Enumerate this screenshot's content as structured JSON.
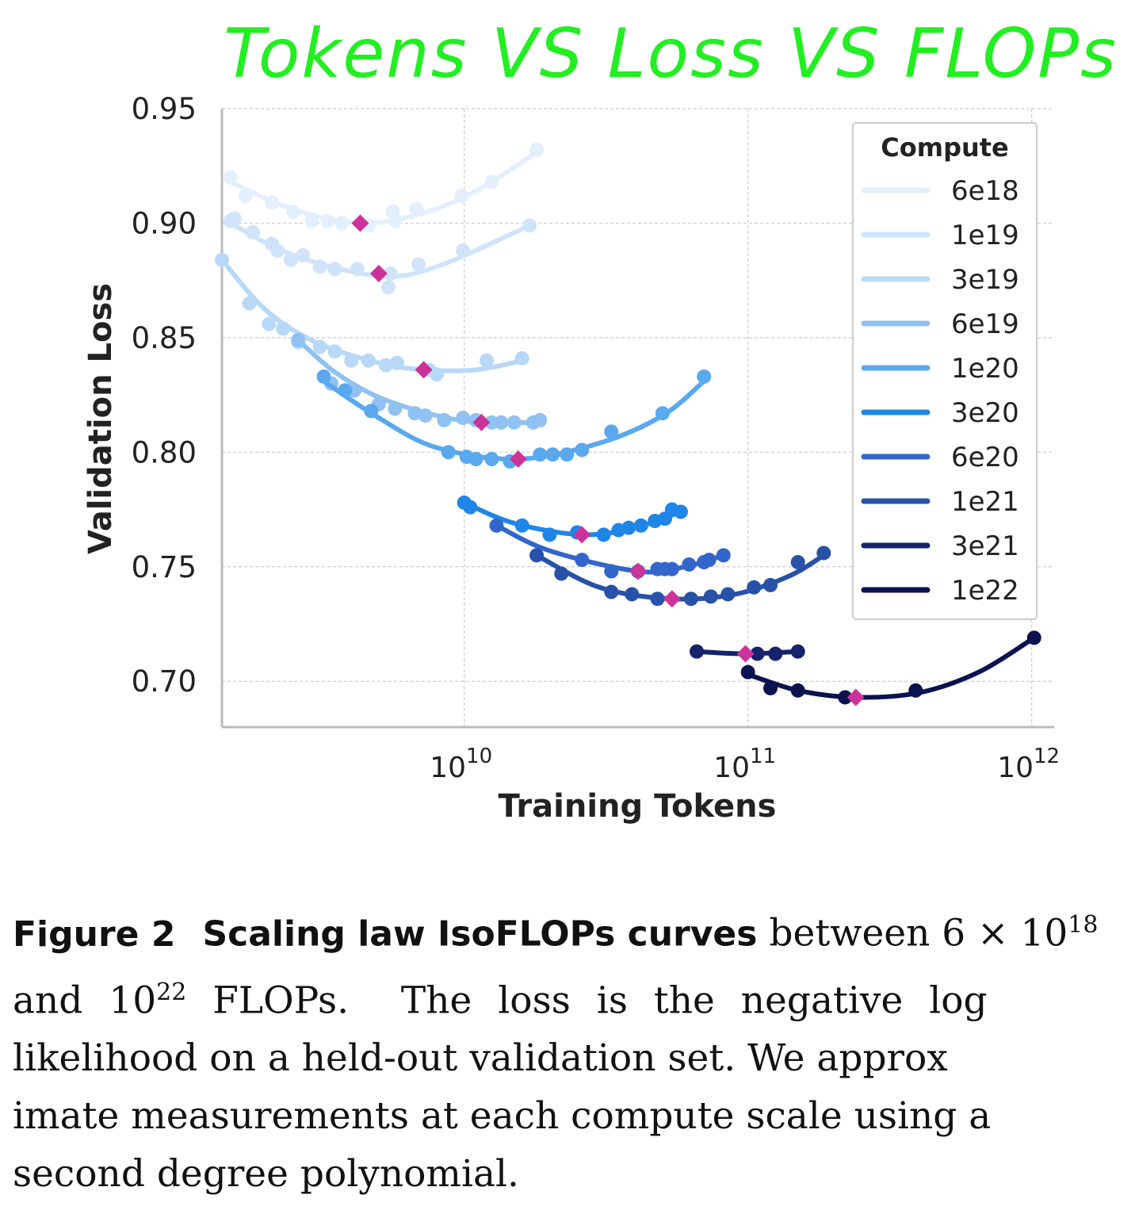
{
  "annotation": "Tokens VS Loss VS FLOPs",
  "chart_data": {
    "type": "scatter",
    "xlabel": "Training Tokens",
    "ylabel": "Validation Loss",
    "xscale": "log",
    "xlim": [
      1400000000.0,
      1200000000000.0
    ],
    "ylim": [
      0.68,
      0.95
    ],
    "yticks": [
      "0.70",
      "0.75",
      "0.80",
      "0.85",
      "0.90",
      "0.95"
    ],
    "xticks": [
      {
        "base": "10",
        "exp": "10",
        "value": 10000000000.0
      },
      {
        "base": "10",
        "exp": "11",
        "value": 100000000000.0
      },
      {
        "base": "10",
        "exp": "12",
        "value": 1000000000000.0
      }
    ],
    "grid": true,
    "legend": {
      "title": "Compute",
      "placement": "top-right"
    },
    "optimum_color": "#cc3399",
    "series": [
      {
        "name": "6e18",
        "color": "#e3effc",
        "points": [
          [
            1500000000.0,
            0.92
          ],
          [
            1700000000.0,
            0.912
          ],
          [
            2100000000.0,
            0.909
          ],
          [
            2500000000.0,
            0.905
          ],
          [
            2900000000.0,
            0.901
          ],
          [
            3300000000.0,
            0.901
          ],
          [
            3700000000.0,
            0.9
          ],
          [
            4600000000.0,
            0.899
          ],
          [
            5600000000.0,
            0.905
          ],
          [
            5700000000.0,
            0.901
          ],
          [
            6800000000.0,
            0.906
          ],
          [
            9800000000.0,
            0.912
          ],
          [
            12500000000.0,
            0.918
          ],
          [
            18000000000.0,
            0.932
          ]
        ],
        "fit": [
          [
            1500000000.0,
            0.918
          ],
          [
            2500000000.0,
            0.906
          ],
          [
            4300000000.0,
            0.9
          ],
          [
            7000000000.0,
            0.904
          ],
          [
            11000000000.0,
            0.914
          ],
          [
            18000000000.0,
            0.931
          ]
        ],
        "optimum": [
          4300000000.0,
          0.9
        ]
      },
      {
        "name": "1e19",
        "color": "#cfe4fb",
        "points": [
          [
            1500000000.0,
            0.901
          ],
          [
            1550000000.0,
            0.902
          ],
          [
            1800000000.0,
            0.896
          ],
          [
            2100000000.0,
            0.891
          ],
          [
            2200000000.0,
            0.888
          ],
          [
            2450000000.0,
            0.884
          ],
          [
            2700000000.0,
            0.886
          ],
          [
            3100000000.0,
            0.881
          ],
          [
            3500000000.0,
            0.88
          ],
          [
            4200000000.0,
            0.88
          ],
          [
            5400000000.0,
            0.872
          ],
          [
            5500000000.0,
            0.878
          ],
          [
            6900000000.0,
            0.882
          ],
          [
            9900000000.0,
            0.888
          ],
          [
            17000000000.0,
            0.899
          ]
        ],
        "fit": [
          [
            1500000000.0,
            0.9
          ],
          [
            2500000000.0,
            0.886
          ],
          [
            5000000000.0,
            0.877
          ],
          [
            8000000000.0,
            0.881
          ],
          [
            17000000000.0,
            0.899
          ]
        ],
        "optimum": [
          5000000000.0,
          0.878
        ]
      },
      {
        "name": "3e19",
        "color": "#b8d8f8",
        "points": [
          [
            1400000000.0,
            0.884
          ],
          [
            1750000000.0,
            0.865
          ],
          [
            2050000000.0,
            0.856
          ],
          [
            2300000000.0,
            0.854
          ],
          [
            2600000000.0,
            0.848
          ],
          [
            3100000000.0,
            0.846
          ],
          [
            3500000000.0,
            0.844
          ],
          [
            4000000000.0,
            0.84
          ],
          [
            4600000000.0,
            0.84
          ],
          [
            5300000000.0,
            0.838
          ],
          [
            5800000000.0,
            0.839
          ],
          [
            7500000000.0,
            0.836
          ],
          [
            8000000000.0,
            0.834
          ],
          [
            12000000000.0,
            0.84
          ],
          [
            16000000000.0,
            0.841
          ]
        ],
        "fit": [
          [
            1400000000.0,
            0.884
          ],
          [
            2000000000.0,
            0.862
          ],
          [
            3000000000.0,
            0.848
          ],
          [
            5000000000.0,
            0.839
          ],
          [
            7200000000.0,
            0.836
          ],
          [
            11000000000.0,
            0.836
          ],
          [
            16000000000.0,
            0.84
          ]
        ],
        "optimum": [
          7200000000.0,
          0.836
        ]
      },
      {
        "name": "6e19",
        "color": "#90c1f2",
        "points": [
          [
            2600000000.0,
            0.849
          ],
          [
            3400000000.0,
            0.83
          ],
          [
            4100000000.0,
            0.827
          ],
          [
            5000000000.0,
            0.821
          ],
          [
            5700000000.0,
            0.819
          ],
          [
            6700000000.0,
            0.817
          ],
          [
            7300000000.0,
            0.816
          ],
          [
            8500000000.0,
            0.814
          ],
          [
            9900000000.0,
            0.815
          ],
          [
            11000000000.0,
            0.814
          ],
          [
            12500000000.0,
            0.813
          ],
          [
            13500000000.0,
            0.813
          ],
          [
            15000000000.0,
            0.813
          ],
          [
            17500000000.0,
            0.813
          ],
          [
            18500000000.0,
            0.814
          ]
        ],
        "fit": [
          [
            2600000000.0,
            0.849
          ],
          [
            3500000000.0,
            0.835
          ],
          [
            5000000000.0,
            0.824
          ],
          [
            8000000000.0,
            0.816
          ],
          [
            11500000000.0,
            0.813
          ],
          [
            18500000000.0,
            0.813
          ]
        ],
        "optimum": [
          11500000000.0,
          0.813
        ]
      },
      {
        "name": "1e20",
        "color": "#5aa8ee",
        "points": [
          [
            3200000000.0,
            0.833
          ],
          [
            3800000000.0,
            0.827
          ],
          [
            4700000000.0,
            0.818
          ],
          [
            8800000000.0,
            0.8
          ],
          [
            10200000000.0,
            0.798
          ],
          [
            11000000000.0,
            0.797
          ],
          [
            12500000000.0,
            0.797
          ],
          [
            14500000000.0,
            0.796
          ],
          [
            18500000000.0,
            0.799
          ],
          [
            20500000000.0,
            0.799
          ],
          [
            23000000000.0,
            0.799
          ],
          [
            26000000000.0,
            0.801
          ],
          [
            33000000000.0,
            0.809
          ],
          [
            50000000000.0,
            0.817
          ],
          [
            70000000000.0,
            0.833
          ]
        ],
        "fit": [
          [
            3200000000.0,
            0.831
          ],
          [
            5000000000.0,
            0.815
          ],
          [
            8000000000.0,
            0.802
          ],
          [
            15500000000.0,
            0.797
          ],
          [
            30000000000.0,
            0.804
          ],
          [
            50000000000.0,
            0.816
          ],
          [
            70000000000.0,
            0.831
          ]
        ],
        "optimum": [
          15500000000.0,
          0.797
        ]
      },
      {
        "name": "3e20",
        "color": "#1f86e8",
        "points": [
          [
            10000000000.0,
            0.778
          ],
          [
            10500000000.0,
            0.776
          ],
          [
            16000000000.0,
            0.768
          ],
          [
            20000000000.0,
            0.764
          ],
          [
            25000000000.0,
            0.765
          ],
          [
            31000000000.0,
            0.764
          ],
          [
            35000000000.0,
            0.766
          ],
          [
            38000000000.0,
            0.767
          ],
          [
            42000000000.0,
            0.768
          ],
          [
            47000000000.0,
            0.77
          ],
          [
            51000000000.0,
            0.771
          ],
          [
            54000000000.0,
            0.775
          ],
          [
            58000000000.0,
            0.774
          ]
        ],
        "fit": [
          [
            10000000000.0,
            0.778
          ],
          [
            15000000000.0,
            0.769
          ],
          [
            26000000000.0,
            0.764
          ],
          [
            40000000000.0,
            0.767
          ],
          [
            58000000000.0,
            0.774
          ]
        ],
        "optimum": [
          26000000000.0,
          0.764
        ]
      },
      {
        "name": "6e20",
        "color": "#3366cc",
        "points": [
          [
            13000000000.0,
            0.768
          ],
          [
            26000000000.0,
            0.753
          ],
          [
            33000000000.0,
            0.748
          ],
          [
            41000000000.0,
            0.748
          ],
          [
            48000000000.0,
            0.749
          ],
          [
            51000000000.0,
            0.749
          ],
          [
            54000000000.0,
            0.749
          ],
          [
            62000000000.0,
            0.751
          ],
          [
            70000000000.0,
            0.752
          ],
          [
            73000000000.0,
            0.753
          ],
          [
            82000000000.0,
            0.755
          ]
        ],
        "fit": [
          [
            13000000000.0,
            0.768
          ],
          [
            20000000000.0,
            0.757
          ],
          [
            41000000000.0,
            0.748
          ],
          [
            60000000000.0,
            0.75
          ],
          [
            82000000000.0,
            0.755
          ]
        ],
        "optimum": [
          41000000000.0,
          0.748
        ]
      },
      {
        "name": "1e21",
        "color": "#2851a8",
        "points": [
          [
            18000000000.0,
            0.755
          ],
          [
            22000000000.0,
            0.747
          ],
          [
            33000000000.0,
            0.739
          ],
          [
            39000000000.0,
            0.738
          ],
          [
            48000000000.0,
            0.736
          ],
          [
            63000000000.0,
            0.736
          ],
          [
            74000000000.0,
            0.737
          ],
          [
            85000000000.0,
            0.738
          ],
          [
            105000000000.0,
            0.741
          ],
          [
            120000000000.0,
            0.742
          ],
          [
            150000000000.0,
            0.752
          ],
          [
            185000000000.0,
            0.756
          ]
        ],
        "fit": [
          [
            18000000000.0,
            0.755
          ],
          [
            30000000000.0,
            0.741
          ],
          [
            54000000000.0,
            0.736
          ],
          [
            90000000000.0,
            0.738
          ],
          [
            140000000000.0,
            0.746
          ],
          [
            185000000000.0,
            0.755
          ]
        ],
        "optimum": [
          54000000000.0,
          0.736
        ]
      },
      {
        "name": "3e21",
        "color": "#14236b",
        "points": [
          [
            66000000000.0,
            0.713
          ],
          [
            108000000000.0,
            0.712
          ],
          [
            125000000000.0,
            0.712
          ],
          [
            150000000000.0,
            0.713
          ]
        ],
        "fit": [
          [
            66000000000.0,
            0.713
          ],
          [
            98000000000.0,
            0.712
          ],
          [
            150000000000.0,
            0.713
          ]
        ],
        "optimum": [
          98000000000.0,
          0.712
        ]
      },
      {
        "name": "1e22",
        "color": "#0b1250",
        "points": [
          [
            100000000000.0,
            0.704
          ],
          [
            120000000000.0,
            0.697
          ],
          [
            150000000000.0,
            0.696
          ],
          [
            220000000000.0,
            0.693
          ],
          [
            390000000000.0,
            0.696
          ],
          [
            1020000000000.0,
            0.719
          ]
        ],
        "fit": [
          [
            100000000000.0,
            0.703
          ],
          [
            150000000000.0,
            0.696
          ],
          [
            240000000000.0,
            0.693
          ],
          [
            400000000000.0,
            0.695
          ],
          [
            650000000000.0,
            0.704
          ],
          [
            1020000000000.0,
            0.719
          ]
        ],
        "optimum": [
          240000000000.0,
          0.693
        ]
      }
    ]
  },
  "caption": {
    "figure_label": "Figure 2",
    "title": "Scaling law IsoFLOPs curves",
    "line1_text": "between 6 × 10",
    "line1_sup": "18",
    "line2_pre": "and 10",
    "line2_sup": "22",
    "line2_post": " FLOPs.  The loss is the negative log",
    "line3": "likelihood on a held-out validation set. We approx",
    "line4": "imate measurements at each compute scale using a",
    "line5": "second degree polynomial."
  }
}
